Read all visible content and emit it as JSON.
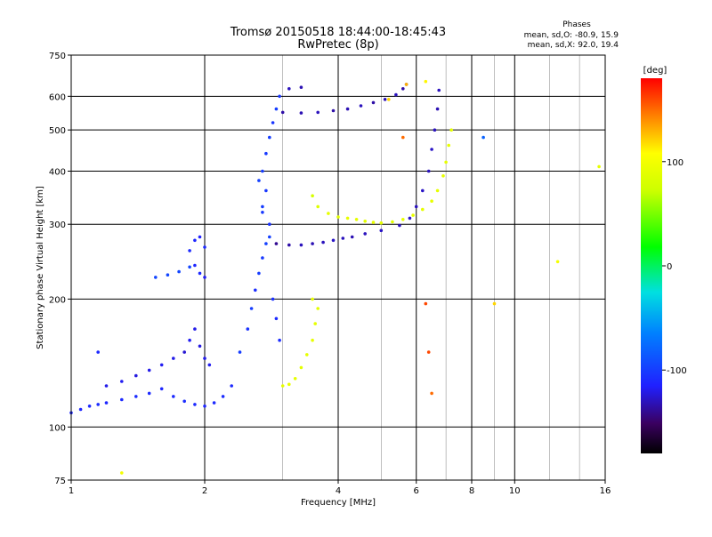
{
  "title": "Tromsø 20150518 18:44:00-18:45:43",
  "subtitle": "RwPretec (8p)",
  "stats": {
    "heading": "Phases",
    "line_o": "mean, sd,O: -80.9, 15.9",
    "line_x": "mean, sd,X:  92.0, 19.4"
  },
  "colorbar": {
    "label": "[deg]",
    "range": [
      -180,
      180
    ],
    "tick_labels": [
      "100",
      "0",
      "-100"
    ],
    "tick_values": [
      100,
      0,
      -100
    ]
  },
  "chart_data": {
    "type": "scatter",
    "xlabel": "Frequency [MHz]",
    "ylabel": "Stationary phase Virtual Height [km]",
    "xscale": "log",
    "yscale": "log",
    "xlim": [
      1,
      16
    ],
    "ylim": [
      75,
      750
    ],
    "x_ticks": [
      1,
      2,
      4,
      6,
      8,
      10,
      16
    ],
    "x_tick_labels": [
      "1",
      "2",
      "4",
      "6",
      "8",
      "10",
      "16"
    ],
    "x_minor_ticks": [
      3,
      5,
      7,
      9,
      12,
      14
    ],
    "y_ticks": [
      75,
      100,
      200,
      300,
      400,
      500,
      600,
      750
    ],
    "y_tick_labels": [
      "75",
      "100",
      "200",
      "300",
      "400",
      "500",
      "600",
      "750"
    ],
    "grid": true,
    "series": [
      {
        "points": [
          [
            1.0,
            108,
            -110
          ],
          [
            1.05,
            110,
            -112
          ],
          [
            1.1,
            112,
            -110
          ],
          [
            1.15,
            113,
            -108
          ],
          [
            1.2,
            114,
            -112
          ],
          [
            1.3,
            116,
            -110
          ],
          [
            1.4,
            118,
            -108
          ],
          [
            1.5,
            120,
            -110
          ],
          [
            1.6,
            123,
            -112
          ],
          [
            1.7,
            118,
            -110
          ],
          [
            1.8,
            115,
            -108
          ],
          [
            1.9,
            113,
            -110
          ],
          [
            2.0,
            112,
            -112
          ],
          [
            2.1,
            114,
            -110
          ],
          [
            2.2,
            118,
            -108
          ],
          [
            2.3,
            125,
            -110
          ]
        ]
      },
      {
        "points": [
          [
            1.2,
            125,
            -120
          ],
          [
            1.3,
            128,
            -118
          ],
          [
            1.4,
            132,
            -122
          ],
          [
            1.5,
            136,
            -120
          ],
          [
            1.6,
            140,
            -118
          ],
          [
            1.7,
            145,
            -120
          ],
          [
            1.8,
            150,
            -125
          ],
          [
            1.85,
            160,
            -118
          ],
          [
            1.9,
            170,
            -120
          ],
          [
            1.95,
            155,
            -122
          ],
          [
            2.0,
            145,
            -120
          ],
          [
            2.05,
            140,
            -118
          ]
        ]
      },
      {
        "points": [
          [
            1.85,
            260,
            -110
          ],
          [
            1.9,
            275,
            -112
          ],
          [
            1.95,
            280,
            -115
          ],
          [
            2.0,
            265,
            -110
          ],
          [
            1.9,
            240,
            -112
          ],
          [
            1.95,
            230,
            -110
          ],
          [
            2.0,
            225,
            -118
          ]
        ]
      },
      {
        "points": [
          [
            1.55,
            225,
            -95
          ],
          [
            1.65,
            228,
            -95
          ],
          [
            1.75,
            232,
            -95
          ],
          [
            1.85,
            238,
            -95
          ]
        ]
      },
      {
        "points": [
          [
            2.4,
            150,
            -100
          ],
          [
            2.5,
            170,
            -105
          ],
          [
            2.55,
            190,
            -100
          ],
          [
            2.6,
            210,
            -108
          ],
          [
            2.65,
            230,
            -100
          ],
          [
            2.7,
            250,
            -102
          ],
          [
            2.75,
            270,
            -98
          ],
          [
            2.8,
            300,
            -105
          ],
          [
            2.7,
            330,
            -100
          ],
          [
            2.75,
            360,
            -103
          ],
          [
            2.7,
            400,
            -100
          ],
          [
            2.75,
            440,
            -102
          ],
          [
            2.8,
            480,
            -100
          ],
          [
            2.85,
            520,
            -104
          ],
          [
            2.9,
            560,
            -100
          ],
          [
            2.95,
            600,
            -103
          ],
          [
            2.8,
            280,
            -98
          ],
          [
            2.7,
            320,
            -102
          ],
          [
            2.65,
            380,
            -98
          ],
          [
            2.85,
            200,
            -106
          ],
          [
            2.9,
            180,
            -110
          ],
          [
            2.95,
            160,
            -108
          ]
        ]
      },
      {
        "points": [
          [
            2.9,
            270,
            -140
          ],
          [
            3.1,
            268,
            -135
          ],
          [
            3.3,
            268,
            -130
          ],
          [
            3.5,
            270,
            -132
          ],
          [
            3.7,
            272,
            -130
          ],
          [
            3.9,
            275,
            -128
          ],
          [
            4.1,
            278,
            -130
          ],
          [
            4.3,
            280,
            -132
          ],
          [
            4.6,
            285,
            -130
          ],
          [
            5.0,
            290,
            -128
          ],
          [
            5.5,
            298,
            -130
          ],
          [
            5.8,
            310,
            -128
          ],
          [
            6.0,
            330,
            -130
          ],
          [
            6.2,
            360,
            -128
          ],
          [
            6.4,
            400,
            -130
          ],
          [
            6.5,
            450,
            -128
          ],
          [
            6.6,
            500,
            -130
          ],
          [
            6.7,
            560,
            -132
          ],
          [
            6.75,
            620,
            -130
          ]
        ]
      },
      {
        "points": [
          [
            3.0,
            550,
            -135
          ],
          [
            3.3,
            548,
            -132
          ],
          [
            3.6,
            550,
            -130
          ],
          [
            3.9,
            555,
            -135
          ],
          [
            4.2,
            560,
            -132
          ],
          [
            4.5,
            570,
            -130
          ],
          [
            4.8,
            580,
            -135
          ],
          [
            5.1,
            590,
            -132
          ],
          [
            5.4,
            605,
            -130
          ],
          [
            5.6,
            625,
            -135
          ],
          [
            5.7,
            640,
            -132
          ],
          [
            3.1,
            625,
            -130
          ],
          [
            3.3,
            630,
            -132
          ]
        ]
      },
      {
        "points": [
          [
            3.5,
            350,
            80
          ],
          [
            3.6,
            330,
            85
          ],
          [
            3.8,
            318,
            90
          ],
          [
            4.0,
            312,
            88
          ],
          [
            4.2,
            310,
            92
          ],
          [
            4.4,
            308,
            90
          ],
          [
            4.6,
            305,
            88
          ],
          [
            4.8,
            303,
            92
          ],
          [
            5.0,
            302,
            90
          ],
          [
            5.3,
            304,
            88
          ],
          [
            5.6,
            308,
            90
          ],
          [
            5.9,
            315,
            92
          ],
          [
            6.2,
            325,
            90
          ],
          [
            6.5,
            340,
            92
          ],
          [
            6.7,
            360,
            90
          ],
          [
            6.9,
            390,
            92
          ],
          [
            7.0,
            420,
            90
          ],
          [
            7.1,
            460,
            92
          ],
          [
            7.2,
            500,
            90
          ]
        ]
      },
      {
        "points": [
          [
            3.0,
            125,
            90
          ],
          [
            3.1,
            126,
            92
          ],
          [
            3.2,
            130,
            90
          ],
          [
            3.3,
            138,
            88
          ],
          [
            3.4,
            148,
            90
          ],
          [
            3.5,
            160,
            92
          ],
          [
            3.55,
            175,
            90
          ],
          [
            3.6,
            190,
            88
          ],
          [
            3.5,
            200,
            92
          ]
        ]
      },
      {
        "points": [
          [
            5.6,
            480,
            150
          ],
          [
            6.3,
            195,
            160
          ],
          [
            6.5,
            120,
            150
          ],
          [
            6.4,
            150,
            160
          ],
          [
            5.2,
            590,
            120
          ],
          [
            5.7,
            640,
            130
          ],
          [
            6.3,
            650,
            110
          ],
          [
            12.5,
            245,
            100
          ],
          [
            9.0,
            195,
            120
          ],
          [
            15.5,
            410,
            90
          ],
          [
            8.5,
            480,
            -80
          ],
          [
            1.3,
            78,
            100
          ],
          [
            1.15,
            150,
            -110
          ]
        ]
      }
    ]
  }
}
